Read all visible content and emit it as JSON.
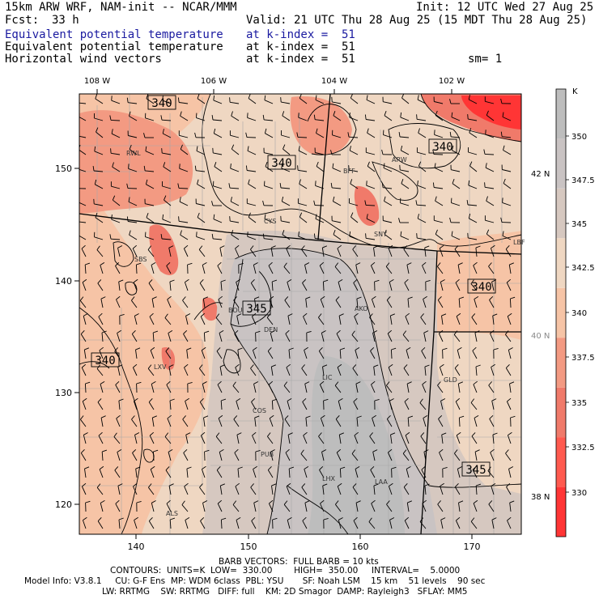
{
  "header": {
    "model_title": "15km ARW WRF, NAM-init -- NCAR/MMM",
    "init": "Init: 12 UTC Wed 27 Aug 25",
    "fcst_label": "Fcst:",
    "fcst_value": "33 h",
    "valid": "Valid: 21 UTC Thu 28 Aug 25 (15 MDT Thu 28 Aug 25)",
    "fields": [
      {
        "name": "Equivalent potential temperature",
        "level": "at k-index =  51",
        "extra": ""
      },
      {
        "name": "Equivalent potential temperature",
        "level": "at k-index =  51",
        "extra": ""
      },
      {
        "name": "Horizontal wind vectors",
        "level": "at k-index =  51",
        "extra": "sm= 1"
      }
    ]
  },
  "map": {
    "lon_labels": [
      "108 W",
      "106 W",
      "104 W",
      "102 W"
    ],
    "lat_labels": [
      "42 N",
      "40 N",
      "38 N"
    ],
    "grid_y_ticks": [
      "150",
      "140",
      "130",
      "120"
    ],
    "grid_x_ticks": [
      "140",
      "150",
      "160",
      "170"
    ],
    "contour_labels": [
      "340",
      "340",
      "340",
      "345",
      "340",
      "340",
      "345"
    ],
    "stations": [
      "RWL",
      "ARW",
      "BFF",
      "CYS",
      "SNY",
      "SBS",
      "BOU",
      "DEN",
      "AKO",
      "LXV",
      "LIC",
      "GLD",
      "COS",
      "PUB",
      "LHX",
      "LAA",
      "ALS",
      "LBF"
    ],
    "colors": {
      "c330": "#ff3535",
      "c332": "#ff5a4f",
      "c335": "#f07a6a",
      "c337": "#f39a82",
      "c340": "#f6c4a6",
      "c342": "#efd7c2",
      "c345": "#d6c8c0",
      "c347": "#c9c3c3",
      "c350": "#bdbdbd"
    }
  },
  "colorbar": {
    "unit": "K",
    "labels": [
      "350",
      "347.5",
      "345",
      "342.5",
      "340",
      "337.5",
      "335",
      "332.5",
      "330"
    ]
  },
  "footer": {
    "barb": "BARB VECTORS:  FULL BARB = 10 kts",
    "contours": "CONTOURS:  UNITS=K  LOW=  330.00        HIGH=  350.00     INTERVAL=    5.0000",
    "model_info": "Model Info: V3.8.1     CU: G-F Ens  MP: WDM 6class  PBL: YSU       SF: Noah LSM    15 km    51 levels    90 sec",
    "physics": "LW: RRTMG    SW: RRTMG   DIFF: full    KM: 2D Smagor  DAMP: Rayleigh3   SFLAY: MM5"
  }
}
